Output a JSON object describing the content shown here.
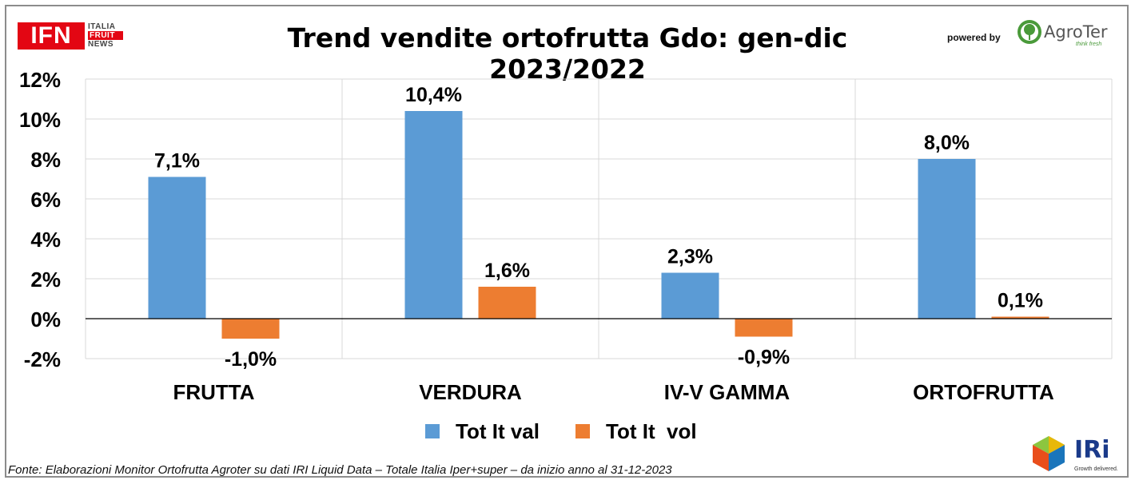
{
  "header": {
    "title": "Trend vendite ortofrutta Gdo: gen-dic 2023/2022",
    "logo_left": {
      "main": "IFN",
      "line1": "ITALIA",
      "line2": "FRUIT",
      "line3": "NEWS"
    },
    "powered_by": "powered by",
    "logo_right": {
      "name": "AgroTer",
      "tagline": "think fresh"
    }
  },
  "footer": {
    "source": "Fonte: Elaborazioni Monitor Ortofrutta Agroter su dati IRI Liquid Data – Totale Italia Iper+super –  da inizio anno al 31-12-2023",
    "logo": {
      "name": "IRi",
      "tagline": "Growth delivered."
    }
  },
  "colors": {
    "val": "#5b9bd5",
    "vol": "#ed7d31",
    "grid": "#d9d9d9",
    "axis": "#000000",
    "accent_red": "#e30613"
  },
  "chart_data": {
    "type": "bar",
    "categories": [
      "FRUTTA",
      "VERDURA",
      "IV-V GAMMA",
      "ORTOFRUTTA"
    ],
    "series": [
      {
        "name": "Tot It val",
        "values": [
          7.1,
          10.4,
          2.3,
          8.0
        ],
        "labels": [
          "7,1%",
          "10,4%",
          "2,3%",
          "8,0%"
        ]
      },
      {
        "name": "Tot It  vol",
        "values": [
          -1.0,
          1.6,
          -0.9,
          0.1
        ],
        "labels": [
          "-1,0%",
          "1,6%",
          "-0,9%",
          "0,1%"
        ]
      }
    ],
    "ylim": [
      -2,
      12
    ],
    "yticks": [
      -2,
      0,
      2,
      4,
      6,
      8,
      10,
      12
    ],
    "ytick_labels": [
      "-2%",
      "0%",
      "2%",
      "4%",
      "6%",
      "8%",
      "10%",
      "12%"
    ],
    "grid": true,
    "legend_position": "bottom"
  }
}
